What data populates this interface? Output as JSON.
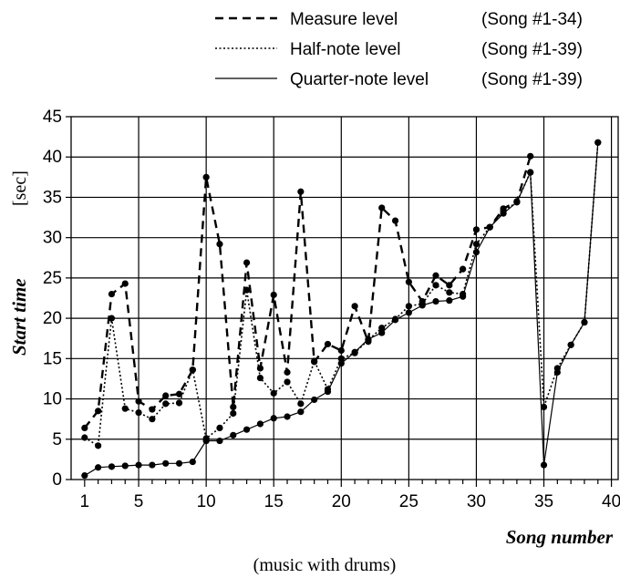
{
  "chart_data": {
    "type": "line",
    "xlabel": "Song number",
    "ylabel_main": "Start time",
    "ylabel_unit": "[sec]",
    "caption": "(music with drums)",
    "xlim": [
      0,
      40.5
    ],
    "ylim": [
      0,
      45
    ],
    "xticks": [
      1,
      5,
      10,
      15,
      20,
      25,
      30,
      35,
      40
    ],
    "yticks": [
      0,
      5,
      10,
      15,
      20,
      25,
      30,
      35,
      40,
      45
    ],
    "grid": true,
    "legend_position": "top-right, above plot",
    "series": [
      {
        "name": "Measure level",
        "range": "(Song #1-34)",
        "style": "dashed",
        "x": [
          1,
          2,
          3,
          4,
          5,
          6,
          7,
          8,
          9,
          10,
          11,
          12,
          13,
          14,
          15,
          16,
          17,
          18,
          19,
          20,
          21,
          22,
          23,
          24,
          25,
          26,
          27,
          28,
          29,
          30,
          31,
          32,
          33,
          34
        ],
        "values": [
          6.4,
          8.5,
          23.0,
          24.3,
          9.7,
          8.7,
          10.4,
          10.6,
          13.6,
          37.5,
          29.2,
          9.0,
          26.9,
          13.8,
          22.9,
          13.3,
          35.7,
          14.6,
          16.8,
          16.0,
          21.5,
          17.1,
          33.7,
          32.1,
          24.5,
          22.1,
          25.3,
          24.1,
          26.1,
          31.0,
          31.3,
          33.6,
          34.5,
          40.1
        ]
      },
      {
        "name": "Half-note level",
        "range": "(Song #1-39)",
        "style": "dotted",
        "x": [
          1,
          2,
          3,
          4,
          5,
          6,
          7,
          8,
          9,
          10,
          11,
          12,
          13,
          14,
          15,
          16,
          17,
          18,
          19,
          20,
          21,
          22,
          23,
          24,
          25,
          26,
          27,
          28,
          29,
          30,
          31,
          32,
          33,
          34,
          35,
          36,
          37,
          38,
          39
        ],
        "values": [
          5.2,
          4.2,
          20.0,
          8.8,
          8.3,
          7.5,
          9.4,
          9.5,
          13.6,
          5.1,
          6.4,
          8.2,
          23.5,
          12.6,
          10.7,
          12.1,
          9.4,
          14.7,
          11.2,
          15.0,
          15.7,
          17.3,
          18.8,
          19.9,
          21.5,
          21.8,
          24.1,
          23.2,
          23.0,
          29.2,
          31.3,
          33.3,
          34.4,
          38.1,
          9.0,
          13.8,
          16.7,
          19.5,
          41.8
        ]
      },
      {
        "name": "Quarter-note level",
        "range": "(Song #1-39)",
        "style": "solid",
        "x": [
          1,
          2,
          3,
          4,
          5,
          6,
          7,
          8,
          9,
          10,
          11,
          12,
          13,
          14,
          15,
          16,
          17,
          18,
          19,
          20,
          21,
          22,
          23,
          24,
          25,
          26,
          27,
          28,
          29,
          30,
          31,
          32,
          33,
          34,
          35,
          36,
          37,
          38,
          39
        ],
        "values": [
          0.5,
          1.5,
          1.6,
          1.7,
          1.8,
          1.8,
          2.0,
          2.0,
          2.2,
          4.8,
          4.8,
          5.5,
          6.2,
          6.9,
          7.6,
          7.8,
          8.4,
          9.9,
          10.9,
          14.4,
          15.8,
          17.4,
          18.2,
          19.8,
          20.7,
          21.6,
          22.1,
          22.2,
          22.7,
          28.2,
          31.3,
          33.0,
          34.4,
          38.1,
          1.8,
          13.3,
          16.7,
          19.5,
          41.8
        ]
      }
    ]
  }
}
